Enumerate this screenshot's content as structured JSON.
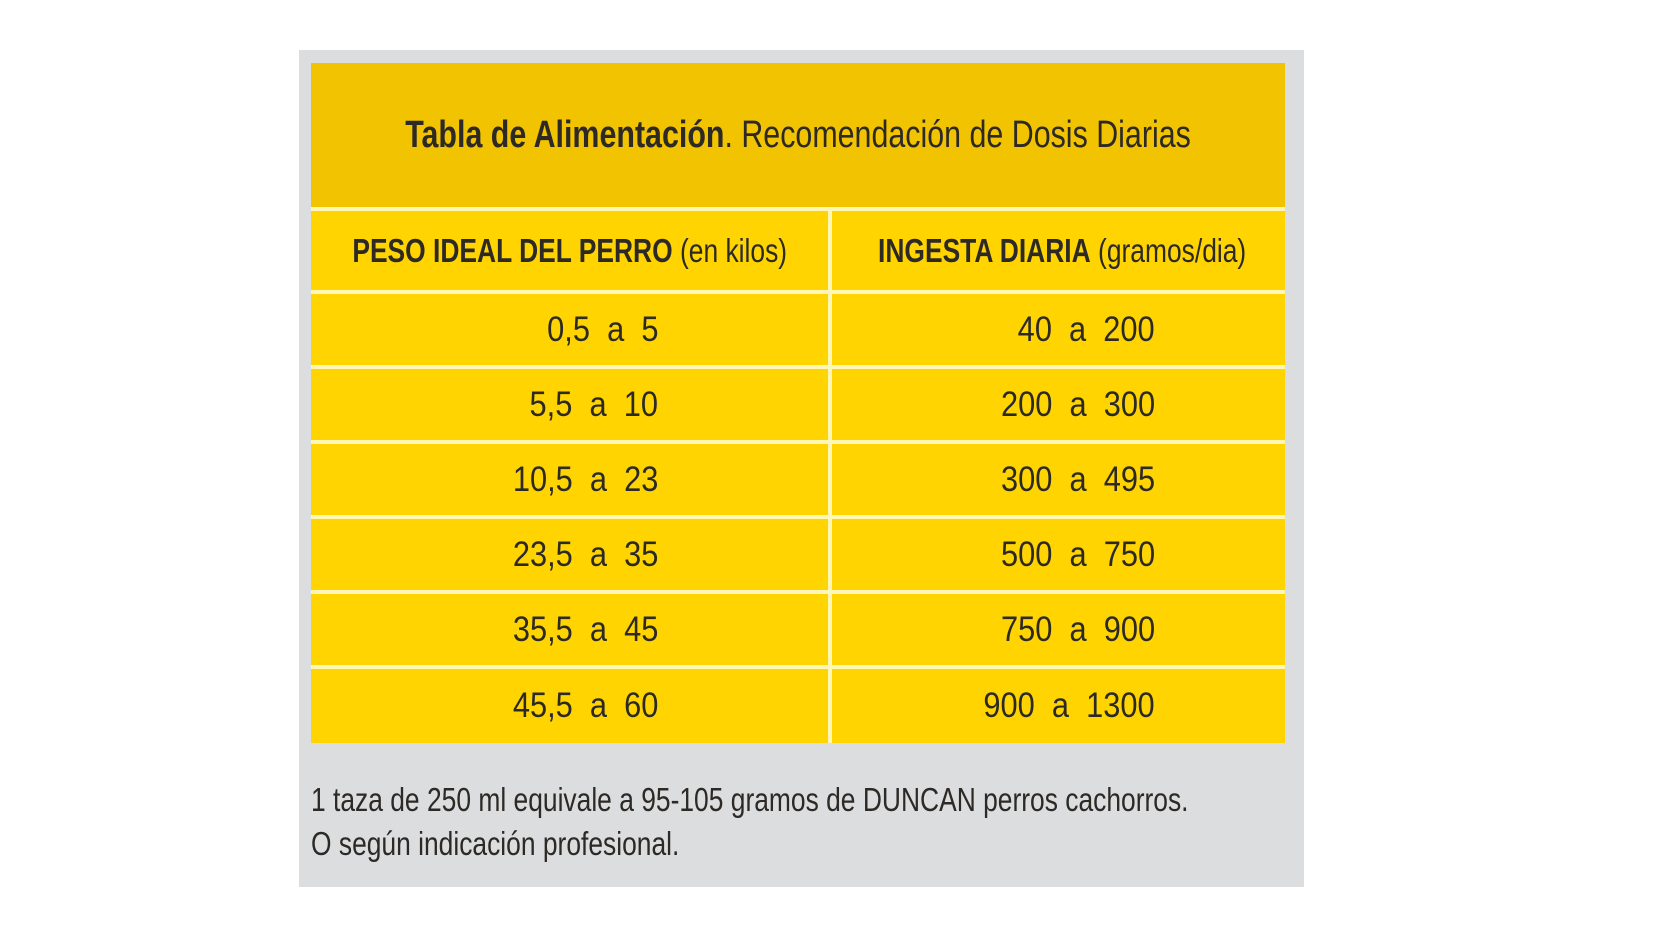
{
  "title": {
    "bold": "Tabla de Alimentación",
    "rest": ". Recomendación de Dosis Diarias"
  },
  "headers": [
    {
      "bold": "PESO IDEAL DEL PERRO",
      "unit": " (en kilos)"
    },
    {
      "bold": "INGESTA DIARIA",
      "unit": " (gramos/dia)"
    }
  ],
  "rows": [
    {
      "weight": "0,5  a  5",
      "intake": "40  a  200"
    },
    {
      "weight": "5,5  a  10",
      "intake": "200  a  300"
    },
    {
      "weight": "10,5  a  23",
      "intake": "300  a  495"
    },
    {
      "weight": "23,5  a  35",
      "intake": "500  a  750"
    },
    {
      "weight": "35,5  a  45",
      "intake": "750  a  900"
    },
    {
      "weight": "45,5  a  60",
      "intake": "900  a  1300"
    }
  ],
  "footer": [
    "1 taza de 250 ml equivale a 95-105 gramos de DUNCAN perros cachorros.",
    "O según indicación profesional."
  ],
  "colors": {
    "title_band": "#f2c300",
    "cells": "#ffd400",
    "panel": "#dcdddf",
    "text": "#2d2a26"
  }
}
